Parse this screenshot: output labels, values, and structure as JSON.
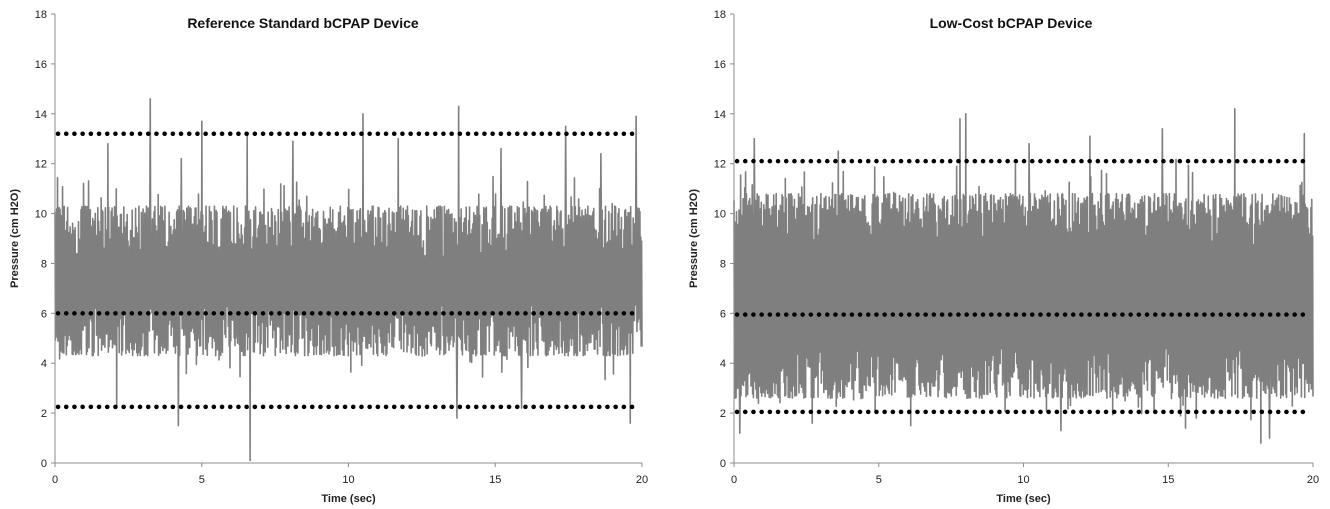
{
  "chart_data": [
    {
      "type": "line",
      "title": "Reference Standard bCPAP Device",
      "xlabel": "Time (sec)",
      "ylabel": "Pressure (cm H2O)",
      "xlim": [
        0,
        20
      ],
      "ylim": [
        0,
        18
      ],
      "x_ticks": [
        "0",
        "5",
        "10",
        "15",
        "20"
      ],
      "y_ticks": [
        "0",
        "2",
        "4",
        "6",
        "8",
        "10",
        "12",
        "14",
        "16",
        "18"
      ],
      "grid": false,
      "series": [
        {
          "color": "#7f7f7f",
          "signal": {
            "baseline_low": 4.3,
            "baseline_high": 10.3,
            "spikes": [
              {
                "x": 3.25,
                "y": 14.6
              },
              {
                "x": 5.0,
                "y": 13.7
              },
              {
                "x": 6.55,
                "y": 13.2
              },
              {
                "x": 10.5,
                "y": 14.0
              },
              {
                "x": 13.75,
                "y": 14.3
              },
              {
                "x": 17.4,
                "y": 13.5
              },
              {
                "x": 19.8,
                "y": 13.9
              },
              {
                "x": 1.8,
                "y": 12.8
              },
              {
                "x": 4.3,
                "y": 12.2
              },
              {
                "x": 8.1,
                "y": 12.9
              },
              {
                "x": 11.7,
                "y": 13.0
              },
              {
                "x": 15.2,
                "y": 12.6
              },
              {
                "x": 18.6,
                "y": 12.4
              },
              {
                "x": 6.65,
                "y": 0.1
              },
              {
                "x": 4.2,
                "y": 1.5
              },
              {
                "x": 13.7,
                "y": 1.8
              },
              {
                "x": 19.6,
                "y": 1.6
              },
              {
                "x": 2.1,
                "y": 2.3
              },
              {
                "x": 15.9,
                "y": 2.2
              }
            ]
          }
        }
      ],
      "reference_lines": [
        {
          "y": 13.2,
          "color": "#000000"
        },
        {
          "y": 6.0,
          "color": "#000000"
        },
        {
          "y": 2.25,
          "color": "#000000"
        }
      ]
    },
    {
      "type": "line",
      "title": "Low-Cost bCPAP Device",
      "xlabel": "Time (sec)",
      "ylabel": "Pressure (cm H2O)",
      "xlim": [
        0,
        20
      ],
      "ylim": [
        0,
        18
      ],
      "x_ticks": [
        "0",
        "5",
        "10",
        "15",
        "20"
      ],
      "y_ticks": [
        "0",
        "2",
        "4",
        "6",
        "8",
        "10",
        "12",
        "14",
        "16",
        "18"
      ],
      "grid": false,
      "series": [
        {
          "color": "#7f7f7f",
          "signal": {
            "baseline_low": 2.6,
            "baseline_high": 10.8,
            "spikes": [
              {
                "x": 7.8,
                "y": 13.8
              },
              {
                "x": 8.0,
                "y": 14.0
              },
              {
                "x": 17.3,
                "y": 14.2
              },
              {
                "x": 19.7,
                "y": 13.2
              },
              {
                "x": 0.7,
                "y": 13.0
              },
              {
                "x": 12.3,
                "y": 13.1
              },
              {
                "x": 14.8,
                "y": 13.4
              },
              {
                "x": 3.6,
                "y": 12.5
              },
              {
                "x": 10.2,
                "y": 12.8
              },
              {
                "x": 0.2,
                "y": 1.2
              },
              {
                "x": 18.2,
                "y": 0.8
              },
              {
                "x": 18.5,
                "y": 1.0
              },
              {
                "x": 11.3,
                "y": 1.3
              },
              {
                "x": 6.1,
                "y": 1.5
              },
              {
                "x": 2.7,
                "y": 1.6
              },
              {
                "x": 15.6,
                "y": 1.4
              }
            ]
          }
        }
      ],
      "reference_lines": [
        {
          "y": 12.1,
          "color": "#000000"
        },
        {
          "y": 5.95,
          "color": "#000000"
        },
        {
          "y": 2.05,
          "color": "#000000"
        }
      ]
    }
  ]
}
